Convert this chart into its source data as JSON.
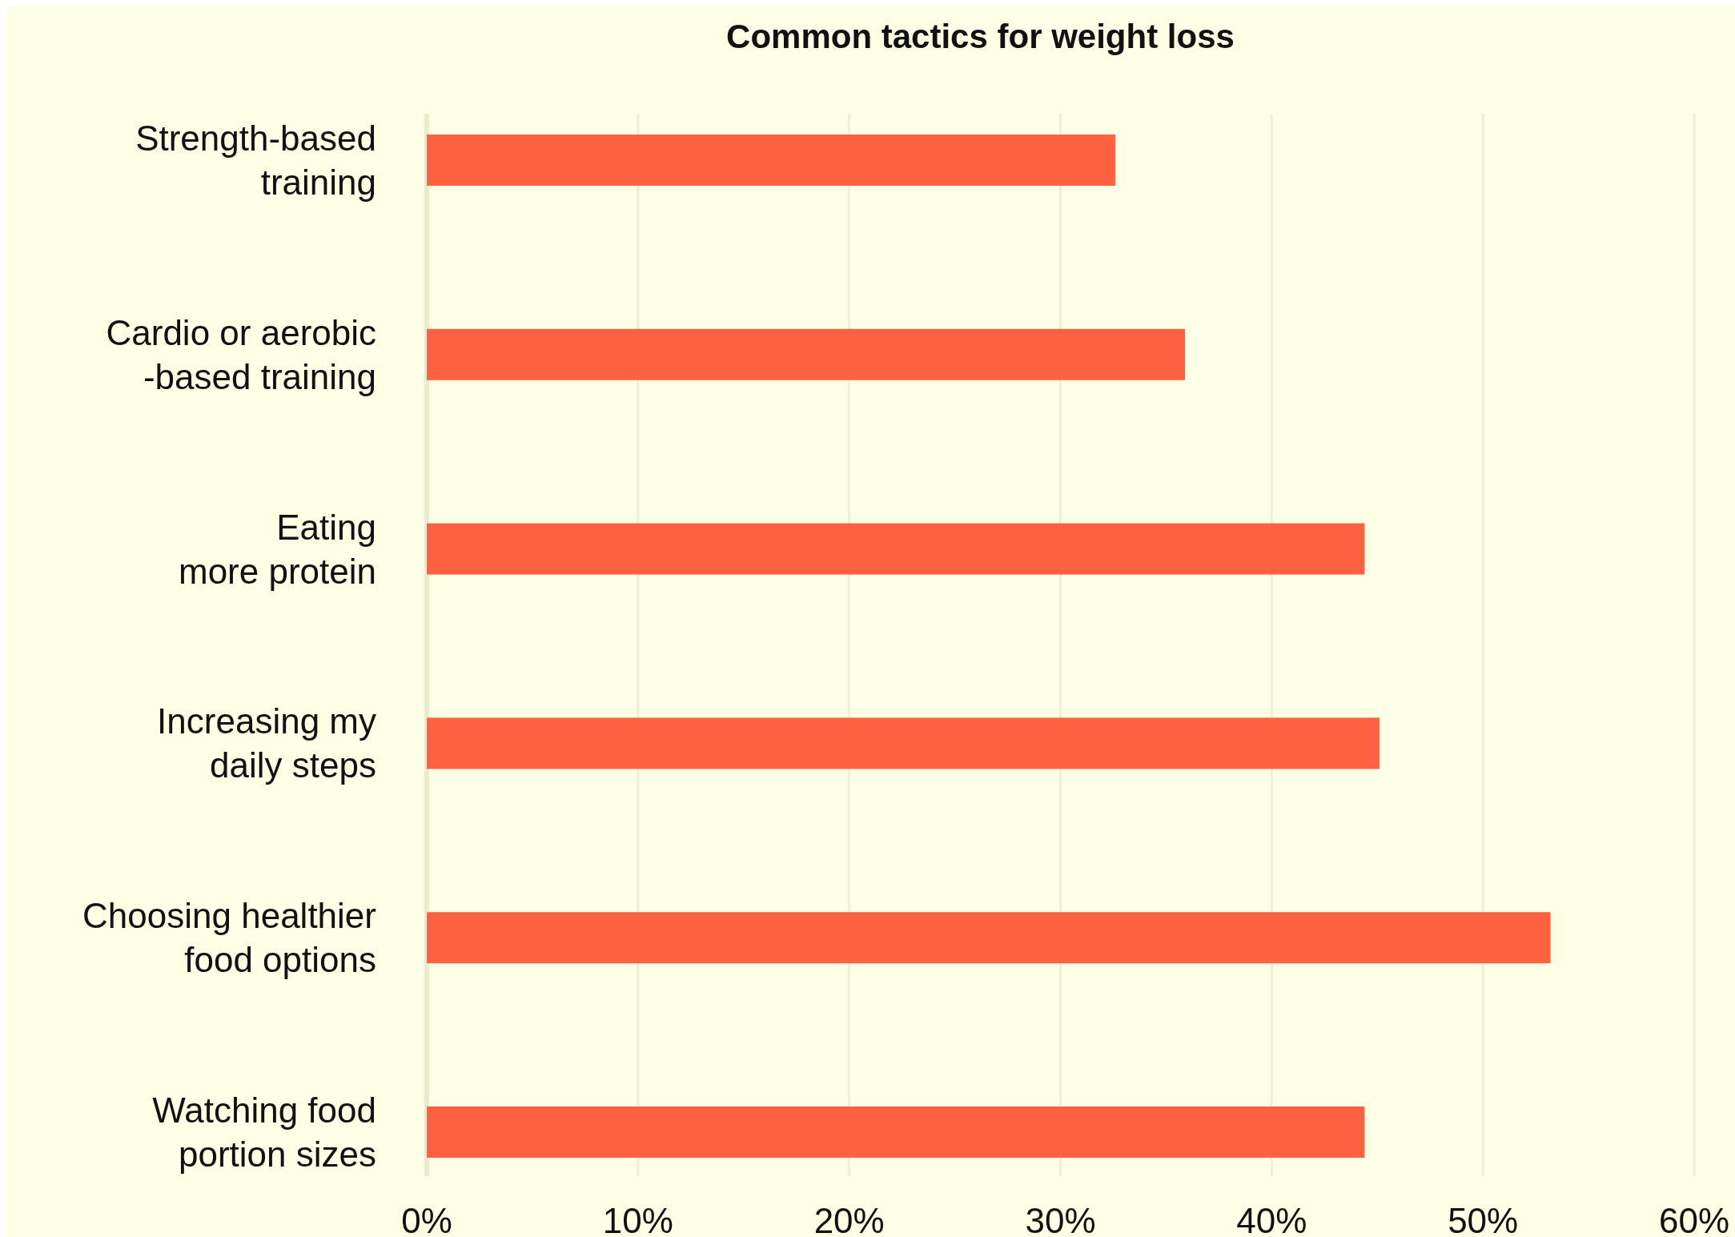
{
  "chart_data": {
    "type": "bar",
    "orientation": "horizontal",
    "title": "Common tactics for weight loss",
    "categories": [
      "Strength-based\ntraining",
      "Cardio or aerobic\n-based training",
      "Eating\nmore protein",
      "Increasing my\ndaily steps",
      "Choosing healthier\nfood options",
      "Watching food\nportion sizes"
    ],
    "values": [
      32.6,
      35.9,
      44.4,
      45.1,
      53.2,
      44.4
    ],
    "color": "#ff6242",
    "xlim": [
      0,
      60
    ],
    "xticks": [
      {
        "value": 0,
        "label": "0%"
      },
      {
        "value": 10,
        "label": "10%"
      },
      {
        "value": 20,
        "label": "20%"
      },
      {
        "value": 30,
        "label": "30%"
      },
      {
        "value": 40,
        "label": "40%"
      },
      {
        "value": 50,
        "label": "50%"
      },
      {
        "value": 60,
        "label": "60%"
      }
    ],
    "grid": "x"
  }
}
